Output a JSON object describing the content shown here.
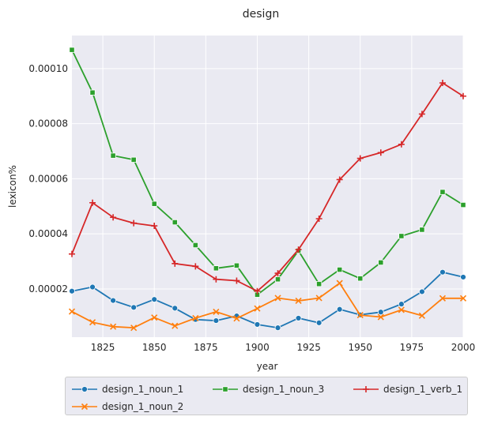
{
  "chart_data": {
    "type": "line",
    "title": "design",
    "xlabel": "year",
    "ylabel": "lexicon%",
    "xlim": [
      1810,
      2000
    ],
    "ylim": [
      2.5e-06,
      0.000112
    ],
    "x_ticks": [
      1825,
      1850,
      1875,
      1900,
      1925,
      1950,
      1975,
      2000
    ],
    "y_ticks": [
      2e-05,
      4e-05,
      6e-05,
      8e-05,
      0.0001
    ],
    "y_tick_labels": [
      "0.00002",
      "0.00004",
      "0.00006",
      "0.00008",
      "0.00010"
    ],
    "grid": true,
    "legend_position": "bottom",
    "x": [
      1810,
      1820,
      1830,
      1840,
      1850,
      1860,
      1870,
      1880,
      1890,
      1900,
      1910,
      1920,
      1930,
      1940,
      1950,
      1960,
      1970,
      1980,
      1990,
      2000
    ],
    "series": [
      {
        "name": "design_1_noun_1",
        "color": "#1f77b4",
        "marker": "circle",
        "values": [
          1.92e-05,
          2.07e-05,
          1.58e-05,
          1.33e-05,
          1.62e-05,
          1.3e-05,
          8.9e-06,
          8.5e-06,
          1.02e-05,
          7.1e-06,
          5.9e-06,
          9.4e-06,
          7.7e-06,
          1.26e-05,
          1.06e-05,
          1.16e-05,
          1.45e-05,
          1.9e-05,
          2.61e-05,
          2.43e-05
        ]
      },
      {
        "name": "design_1_noun_2",
        "color": "#ff7f0e",
        "marker": "x",
        "values": [
          1.18e-05,
          7.9e-06,
          6.3e-06,
          5.9e-06,
          9.6e-06,
          6.6e-06,
          9.4e-06,
          1.17e-05,
          9.3e-06,
          1.29e-05,
          1.67e-05,
          1.57e-05,
          1.67e-05,
          2.21e-05,
          1.05e-05,
          9.8e-06,
          1.24e-05,
          1.03e-05,
          1.66e-05,
          1.66e-05
        ]
      },
      {
        "name": "design_1_noun_3",
        "color": "#2ca02c",
        "marker": "square",
        "values": [
          0.0001068,
          9.13e-05,
          6.84e-05,
          6.69e-05,
          5.09e-05,
          4.42e-05,
          3.59e-05,
          2.75e-05,
          2.85e-05,
          1.79e-05,
          2.35e-05,
          3.39e-05,
          2.18e-05,
          2.7e-05,
          2.38e-05,
          2.96e-05,
          3.92e-05,
          4.15e-05,
          5.52e-05,
          5.05e-05
        ]
      },
      {
        "name": "design_1_verb_1",
        "color": "#d62728",
        "marker": "plus",
        "values": [
          3.27e-05,
          5.13e-05,
          4.6e-05,
          4.39e-05,
          4.29e-05,
          2.92e-05,
          2.82e-05,
          2.35e-05,
          2.3e-05,
          1.92e-05,
          2.57e-05,
          3.43e-05,
          4.55e-05,
          5.97e-05,
          6.74e-05,
          6.95e-05,
          7.25e-05,
          8.35e-05,
          9.48e-05,
          9e-05
        ]
      }
    ]
  }
}
